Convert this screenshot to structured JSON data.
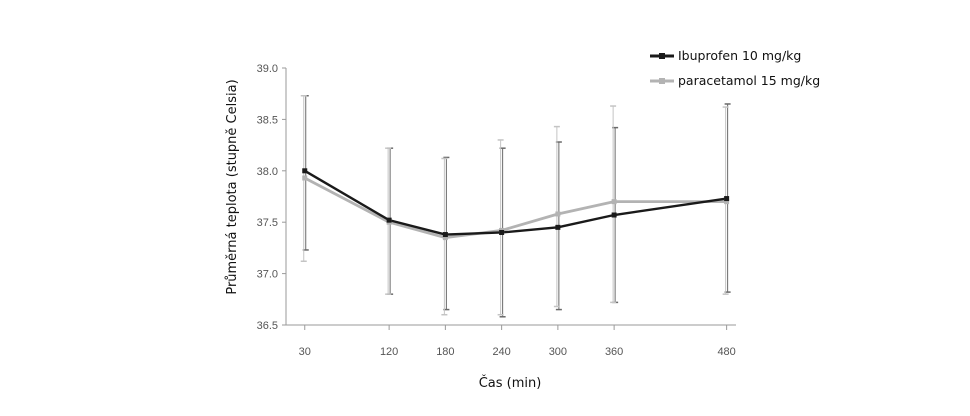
{
  "chart_data": {
    "type": "line",
    "xlabel": "Čas (min)",
    "ylabel": "Průměrná teplota (stupně Celsia)",
    "x": [
      30,
      120,
      180,
      240,
      300,
      360,
      480
    ],
    "x_tick_labels": [
      "30",
      "120",
      "180",
      "240",
      "300",
      "360",
      "480"
    ],
    "ylim": [
      36.5,
      39.0
    ],
    "y_ticks": [
      36.5,
      37.0,
      37.5,
      38.0,
      38.5,
      39.0
    ],
    "y_tick_labels": [
      "36.5",
      "37.0",
      "37.5",
      "38.0",
      "38.5",
      "39.0"
    ],
    "grid": false,
    "legend_position": "top-right",
    "series": [
      {
        "name": "Ibuprofen 10 mg/kg",
        "color": "#1a1a1a",
        "values": [
          38.0,
          37.52,
          37.38,
          37.4,
          37.45,
          37.57,
          37.73
        ],
        "error_low": [
          37.23,
          36.8,
          36.65,
          36.58,
          36.65,
          36.72,
          36.82
        ],
        "error_high": [
          38.73,
          38.22,
          38.13,
          38.22,
          38.28,
          38.42,
          38.65
        ]
      },
      {
        "name": "paracetamol 15 mg/kg",
        "color": "#b3b3b3",
        "values": [
          37.93,
          37.5,
          37.35,
          37.42,
          37.58,
          37.7,
          37.7
        ],
        "error_low": [
          37.12,
          36.8,
          36.6,
          36.6,
          36.68,
          36.72,
          36.8
        ],
        "error_high": [
          38.73,
          38.22,
          38.12,
          38.3,
          38.43,
          38.63,
          38.62
        ]
      }
    ]
  }
}
